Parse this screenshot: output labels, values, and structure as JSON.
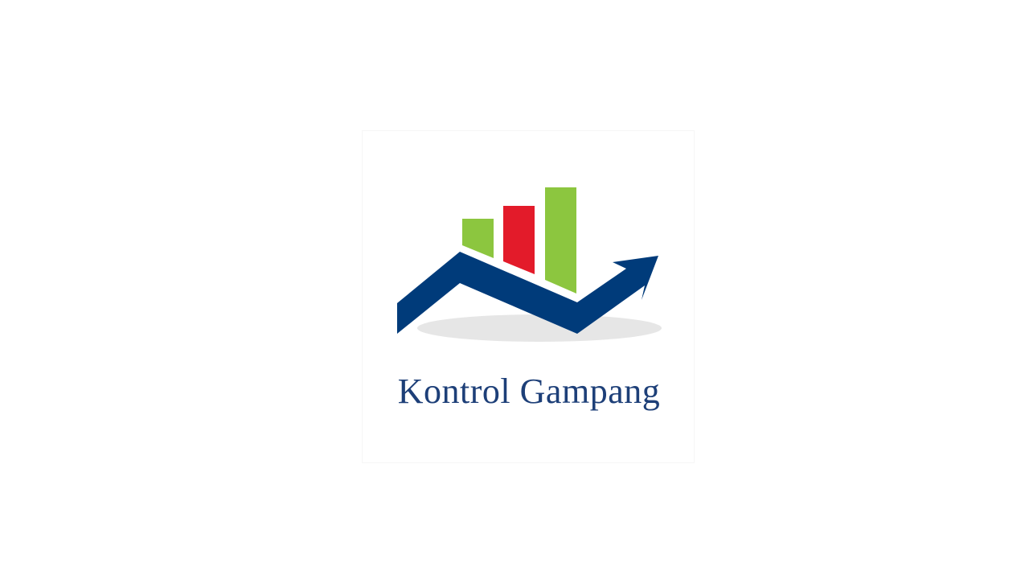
{
  "logo": {
    "brand_name": "Kontrol Gampang",
    "icon": "growth-chart-arrow-icon",
    "colors": {
      "navy": "#003b7a",
      "green": "#8cc63f",
      "red": "#e31b2a",
      "shadow": "#e6e6e6",
      "text": "#1d3f78"
    }
  }
}
